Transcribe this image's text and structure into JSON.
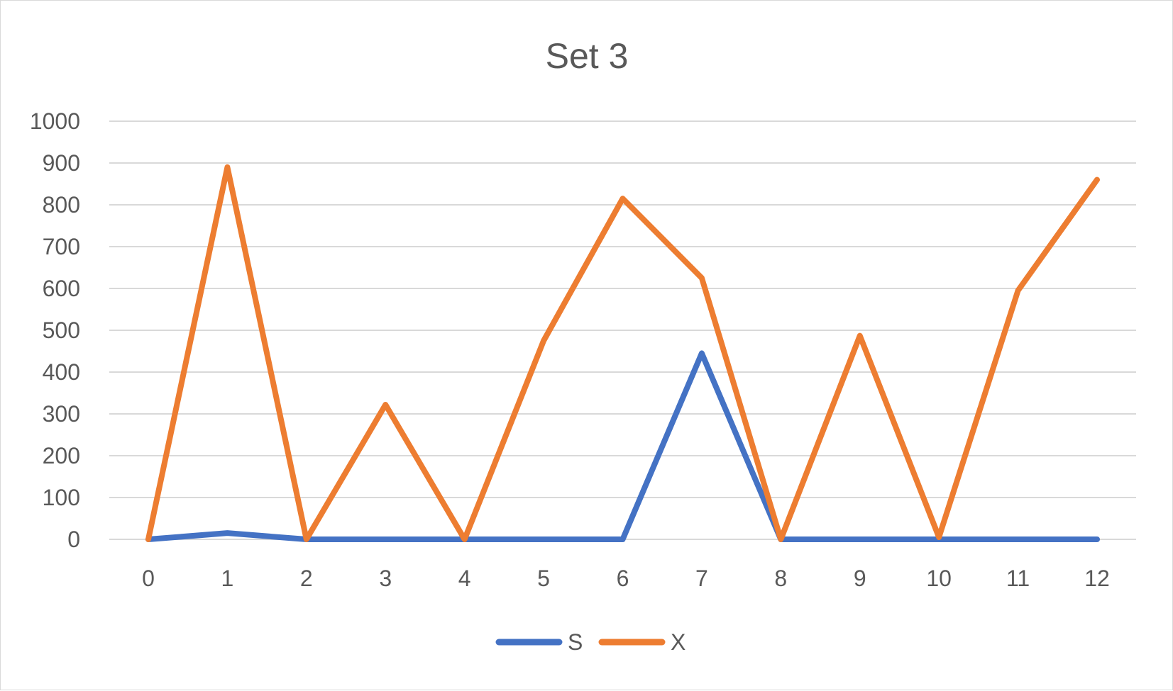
{
  "chart_data": {
    "type": "line",
    "title": "Set 3",
    "xlabel": "",
    "ylabel": "",
    "x": [
      0,
      1,
      2,
      3,
      4,
      5,
      6,
      7,
      8,
      9,
      10,
      11,
      12
    ],
    "x_tick_labels": [
      "0",
      "1",
      "2",
      "3",
      "4",
      "5",
      "6",
      "7",
      "8",
      "9",
      "10",
      "11",
      "12"
    ],
    "ylim": [
      0,
      1000
    ],
    "y_ticks": [
      0,
      100,
      200,
      300,
      400,
      500,
      600,
      700,
      800,
      900,
      1000
    ],
    "y_tick_labels": [
      "0",
      "100",
      "200",
      "300",
      "400",
      "500",
      "600",
      "700",
      "800",
      "900",
      "1000"
    ],
    "grid": true,
    "legend_position": "bottom",
    "series": [
      {
        "name": "S",
        "color": "#4472c4",
        "values": [
          0,
          15,
          0,
          0,
          0,
          0,
          0,
          445,
          0,
          0,
          0,
          0,
          0
        ]
      },
      {
        "name": "X",
        "color": "#ed7d31",
        "values": [
          0,
          890,
          0,
          322,
          0,
          475,
          815,
          625,
          0,
          487,
          5,
          595,
          860
        ]
      }
    ]
  }
}
